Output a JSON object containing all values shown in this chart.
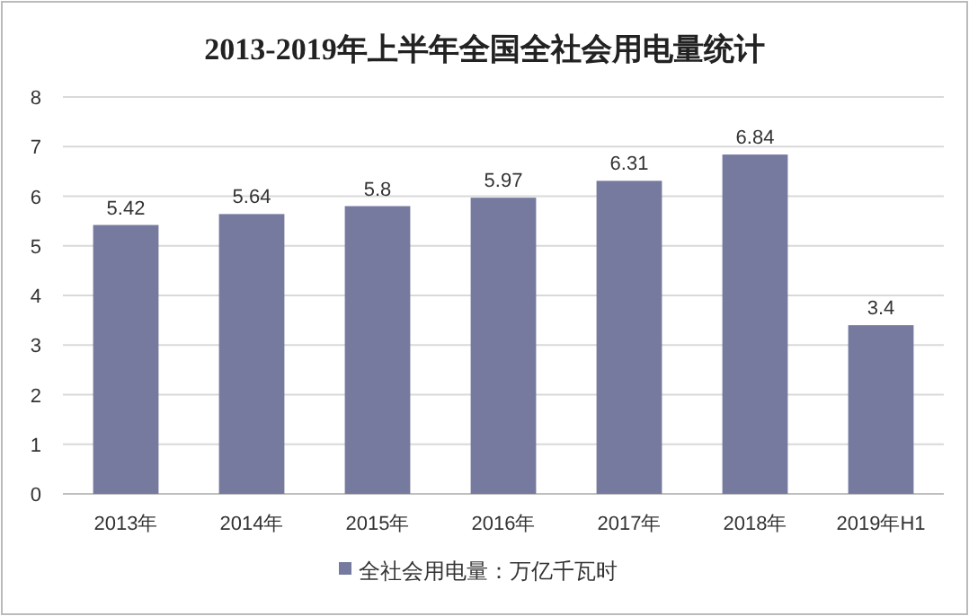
{
  "chart_data": {
    "type": "bar",
    "title": "2013-2019年上半年全国全社会用电量统计",
    "categories": [
      "2013年",
      "2014年",
      "2015年",
      "2016年",
      "2017年",
      "2018年",
      "2019年H1"
    ],
    "series": [
      {
        "name": "全社会用电量：万亿千瓦时",
        "color": "#767a9f",
        "values": [
          5.42,
          5.64,
          5.8,
          5.97,
          6.31,
          6.84,
          3.4
        ]
      }
    ],
    "ylim": [
      0,
      8
    ],
    "yticks": [
      0,
      1,
      2,
      3,
      4,
      5,
      6,
      7,
      8
    ],
    "grid": "y",
    "data_labels": true,
    "legend": "bottom"
  }
}
